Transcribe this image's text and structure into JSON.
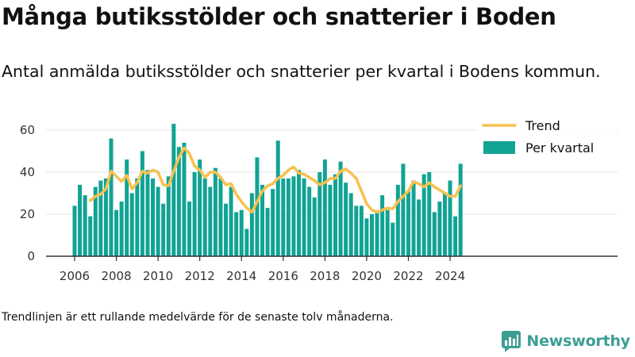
{
  "header": {
    "title": "Många butiksstölder och snatterier i Boden",
    "subtitle": "Antal anmälda butiksstölder och snatterier per kvartal i Bodens kommun."
  },
  "footer": {
    "note": "Trendlinjen är ett rullande medelvärde för de senaste tolv månaderna.",
    "brand": "Newsworthy"
  },
  "colors": {
    "bars": "#11a394",
    "trend": "#f7c14e",
    "axis": "#333333",
    "grid": "#e6e6e6",
    "brand": "#3d9e94"
  },
  "chart_data": {
    "type": "bar",
    "x_start_year": 2006,
    "x_ticks": [
      2006,
      2008,
      2010,
      2012,
      2014,
      2016,
      2018,
      2020,
      2022,
      2024
    ],
    "ylim": [
      0,
      63
    ],
    "yticks": [
      0,
      20,
      40,
      60
    ],
    "grid": "horizontal",
    "legend_position": "top-right",
    "series": [
      {
        "name": "Per kvartal",
        "kind": "bar",
        "values": [
          24,
          34,
          29,
          19,
          33,
          36,
          37,
          56,
          22,
          26,
          46,
          30,
          37,
          50,
          41,
          37,
          33,
          25,
          38,
          63,
          52,
          54,
          26,
          40,
          46,
          37,
          33,
          42,
          37,
          25,
          33,
          21,
          22,
          13,
          30,
          47,
          34,
          23,
          32,
          55,
          37,
          37,
          38,
          41,
          37,
          33,
          28,
          40,
          46,
          34,
          39,
          45,
          35,
          30,
          24,
          24,
          18,
          20,
          21,
          29,
          22,
          16,
          34,
          44,
          31,
          36,
          27,
          39,
          40,
          21,
          26,
          30,
          36,
          19,
          44
        ]
      },
      {
        "name": "Trend",
        "kind": "line",
        "start_index": 3,
        "values": [
          26.5,
          28.5,
          29.5,
          32,
          40.5,
          38,
          35.5,
          38.5,
          32,
          35,
          40.5,
          39.5,
          41,
          40,
          34,
          33.5,
          40.5,
          47,
          51.5,
          49,
          43,
          41,
          37.5,
          40,
          40,
          37.5,
          34,
          34.5,
          29.5,
          26,
          23,
          21,
          26,
          31,
          33.5,
          34.5,
          37,
          38.5,
          41,
          42.5,
          39.5,
          39,
          37.5,
          36,
          34,
          35,
          37,
          37,
          40.5,
          41.5,
          39.5,
          37,
          31,
          25,
          22,
          21,
          22,
          23,
          22.5,
          26,
          28.5,
          31,
          35.5,
          34.5,
          33,
          35,
          33,
          31.5,
          30,
          28.5,
          28.5,
          33.5
        ]
      }
    ]
  }
}
